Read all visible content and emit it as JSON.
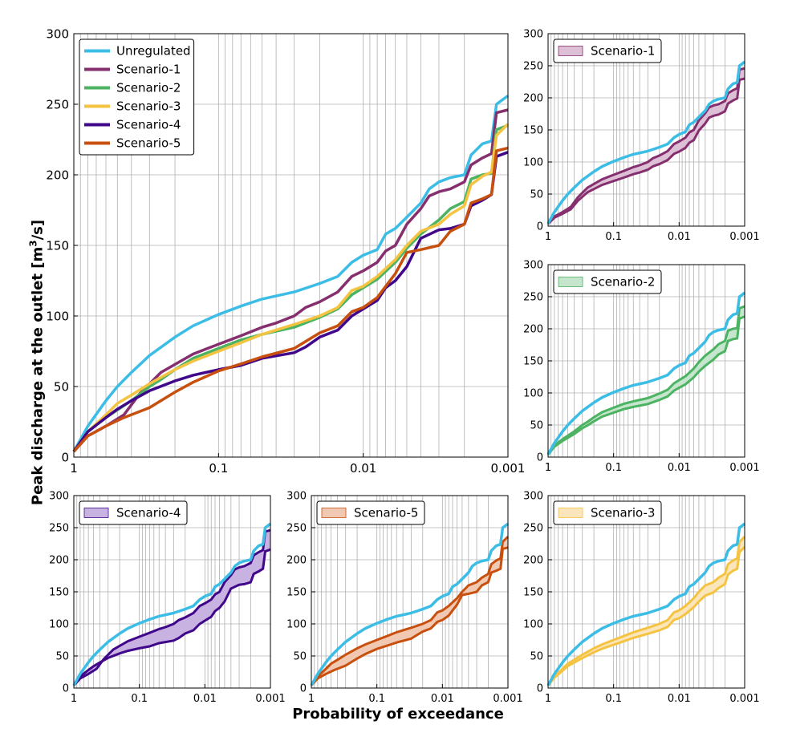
{
  "chart_data": {
    "type": "line",
    "xlabel": "Probability of exceedance",
    "ylabel_prefix": "Peak discharge at the outlet [m",
    "ylabel_sup": "3",
    "ylabel_suffix": "/s]",
    "xscale": "log-reversed",
    "xlim": [
      1,
      0.001
    ],
    "ylim": [
      0,
      300
    ],
    "grid": true,
    "xticks": [
      "1",
      "0.1",
      "0.01",
      "0.001"
    ],
    "yticks": [
      "0",
      "50",
      "100",
      "150",
      "200",
      "250",
      "300"
    ],
    "series": [
      {
        "name": "Unregulated",
        "color": "#3cbde6",
        "points": [
          [
            1,
            4
          ],
          [
            0.8,
            22
          ],
          [
            0.6,
            40
          ],
          [
            0.5,
            50
          ],
          [
            0.4,
            60
          ],
          [
            0.3,
            72
          ],
          [
            0.2,
            85
          ],
          [
            0.15,
            93
          ],
          [
            0.1,
            101
          ],
          [
            0.07,
            107
          ],
          [
            0.05,
            112
          ],
          [
            0.03,
            117
          ],
          [
            0.02,
            123
          ],
          [
            0.015,
            128
          ],
          [
            0.012,
            138
          ],
          [
            0.01,
            143
          ],
          [
            0.008,
            147
          ],
          [
            0.007,
            158
          ],
          [
            0.006,
            162
          ],
          [
            0.005,
            170
          ],
          [
            0.004,
            180
          ],
          [
            0.0035,
            190
          ],
          [
            0.003,
            195
          ],
          [
            0.0025,
            198
          ],
          [
            0.002,
            200
          ],
          [
            0.0018,
            214
          ],
          [
            0.0015,
            222
          ],
          [
            0.0013,
            224
          ],
          [
            0.0012,
            250
          ],
          [
            0.001,
            256
          ]
        ]
      },
      {
        "name": "Scenario-1",
        "color": "#862f6f",
        "points": [
          [
            1,
            4
          ],
          [
            0.8,
            15
          ],
          [
            0.6,
            22
          ],
          [
            0.45,
            30
          ],
          [
            0.35,
            45
          ],
          [
            0.25,
            60
          ],
          [
            0.15,
            73
          ],
          [
            0.1,
            80
          ],
          [
            0.07,
            86
          ],
          [
            0.05,
            92
          ],
          [
            0.04,
            95
          ],
          [
            0.03,
            100
          ],
          [
            0.025,
            106
          ],
          [
            0.02,
            110
          ],
          [
            0.015,
            117
          ],
          [
            0.012,
            128
          ],
          [
            0.01,
            132
          ],
          [
            0.008,
            138
          ],
          [
            0.007,
            146
          ],
          [
            0.006,
            150
          ],
          [
            0.005,
            165
          ],
          [
            0.004,
            176
          ],
          [
            0.0035,
            185
          ],
          [
            0.003,
            188
          ],
          [
            0.0025,
            190
          ],
          [
            0.002,
            195
          ],
          [
            0.0018,
            207
          ],
          [
            0.0015,
            212
          ],
          [
            0.0013,
            215
          ],
          [
            0.0012,
            244
          ],
          [
            0.001,
            246
          ]
        ]
      },
      {
        "name": "Scenario-2",
        "color": "#4cb362",
        "points": [
          [
            1,
            4
          ],
          [
            0.8,
            18
          ],
          [
            0.6,
            28
          ],
          [
            0.4,
            40
          ],
          [
            0.3,
            50
          ],
          [
            0.25,
            55
          ],
          [
            0.2,
            62
          ],
          [
            0.15,
            70
          ],
          [
            0.1,
            77
          ],
          [
            0.07,
            83
          ],
          [
            0.05,
            87
          ],
          [
            0.03,
            92
          ],
          [
            0.02,
            99
          ],
          [
            0.015,
            105
          ],
          [
            0.012,
            115
          ],
          [
            0.01,
            120
          ],
          [
            0.008,
            126
          ],
          [
            0.006,
            138
          ],
          [
            0.005,
            148
          ],
          [
            0.004,
            158
          ],
          [
            0.003,
            168
          ],
          [
            0.0025,
            176
          ],
          [
            0.002,
            181
          ],
          [
            0.0018,
            197
          ],
          [
            0.0015,
            200
          ],
          [
            0.0013,
            201
          ],
          [
            0.0012,
            232
          ],
          [
            0.001,
            235
          ]
        ]
      },
      {
        "name": "Scenario-3",
        "color": "#f5c342",
        "points": [
          [
            1,
            4
          ],
          [
            0.8,
            18
          ],
          [
            0.6,
            30
          ],
          [
            0.5,
            38
          ],
          [
            0.4,
            44
          ],
          [
            0.3,
            52
          ],
          [
            0.2,
            62
          ],
          [
            0.15,
            68
          ],
          [
            0.1,
            75
          ],
          [
            0.07,
            81
          ],
          [
            0.05,
            87
          ],
          [
            0.03,
            94
          ],
          [
            0.02,
            100
          ],
          [
            0.015,
            106
          ],
          [
            0.012,
            118
          ],
          [
            0.01,
            121
          ],
          [
            0.008,
            128
          ],
          [
            0.006,
            140
          ],
          [
            0.005,
            150
          ],
          [
            0.004,
            160
          ],
          [
            0.003,
            165
          ],
          [
            0.0025,
            172
          ],
          [
            0.002,
            178
          ],
          [
            0.0018,
            193
          ],
          [
            0.0015,
            199
          ],
          [
            0.0013,
            202
          ],
          [
            0.0012,
            228
          ],
          [
            0.001,
            236
          ]
        ]
      },
      {
        "name": "Scenario-4",
        "color": "#40078b",
        "points": [
          [
            1,
            4
          ],
          [
            0.8,
            18
          ],
          [
            0.6,
            28
          ],
          [
            0.5,
            34
          ],
          [
            0.4,
            40
          ],
          [
            0.3,
            47
          ],
          [
            0.2,
            54
          ],
          [
            0.15,
            58
          ],
          [
            0.1,
            62
          ],
          [
            0.07,
            65
          ],
          [
            0.05,
            70
          ],
          [
            0.03,
            74
          ],
          [
            0.025,
            78
          ],
          [
            0.02,
            85
          ],
          [
            0.015,
            90
          ],
          [
            0.012,
            100
          ],
          [
            0.01,
            105
          ],
          [
            0.008,
            111
          ],
          [
            0.007,
            120
          ],
          [
            0.006,
            125
          ],
          [
            0.005,
            135
          ],
          [
            0.004,
            155
          ],
          [
            0.003,
            161
          ],
          [
            0.0025,
            162
          ],
          [
            0.002,
            165
          ],
          [
            0.0018,
            178
          ],
          [
            0.0015,
            182
          ],
          [
            0.0013,
            186
          ],
          [
            0.0012,
            213
          ],
          [
            0.001,
            216
          ]
        ]
      },
      {
        "name": "Scenario-5",
        "color": "#c8500f",
        "points": [
          [
            1,
            4
          ],
          [
            0.8,
            15
          ],
          [
            0.6,
            22
          ],
          [
            0.45,
            28
          ],
          [
            0.3,
            35
          ],
          [
            0.25,
            40
          ],
          [
            0.2,
            46
          ],
          [
            0.15,
            53
          ],
          [
            0.1,
            61
          ],
          [
            0.07,
            66
          ],
          [
            0.05,
            71
          ],
          [
            0.03,
            77
          ],
          [
            0.025,
            82
          ],
          [
            0.02,
            88
          ],
          [
            0.015,
            93
          ],
          [
            0.012,
            103
          ],
          [
            0.01,
            106
          ],
          [
            0.008,
            113
          ],
          [
            0.007,
            121
          ],
          [
            0.006,
            130
          ],
          [
            0.005,
            145
          ],
          [
            0.004,
            147
          ],
          [
            0.003,
            150
          ],
          [
            0.0025,
            160
          ],
          [
            0.002,
            165
          ],
          [
            0.0018,
            180
          ],
          [
            0.0015,
            183
          ],
          [
            0.0013,
            186
          ],
          [
            0.0012,
            217
          ],
          [
            0.001,
            219
          ]
        ]
      }
    ],
    "panels": [
      {
        "id": "main",
        "legend": [
          "Unregulated",
          "Scenario-1",
          "Scenario-2",
          "Scenario-3",
          "Scenario-4",
          "Scenario-5"
        ],
        "lines": [
          "Unregulated",
          "Scenario-1",
          "Scenario-2",
          "Scenario-3",
          "Scenario-4",
          "Scenario-5"
        ],
        "band": null,
        "legend_placement": "top-left",
        "tick_font": 15
      },
      {
        "id": "p1",
        "legend": [
          "Scenario-1"
        ],
        "lines": [
          "Unregulated",
          "Scenario-1"
        ],
        "band": {
          "color": "#862f6f",
          "fill": "#ddc0d6",
          "lower_scale": 0.88,
          "upper": "Scenario-1"
        },
        "legend_placement": "top-left",
        "tick_font": 13
      },
      {
        "id": "p2",
        "legend": [
          "Scenario-2"
        ],
        "lines": [
          "Unregulated",
          "Scenario-2"
        ],
        "band": {
          "color": "#4cb362",
          "fill": "#c5e5cc",
          "lower_scale": 0.9,
          "upper": "Scenario-2"
        },
        "legend_placement": "top-left",
        "tick_font": 13
      },
      {
        "id": "p4",
        "legend": [
          "Scenario-4"
        ],
        "lines": [
          "Unregulated",
          "Scenario-4"
        ],
        "band": {
          "color": "#40078b",
          "fill": "#c7b2e2",
          "upper_from": "Scenario-1",
          "lower": "Scenario-4"
        },
        "legend_placement": "top-left",
        "tick_font": 13
      },
      {
        "id": "p5",
        "legend": [
          "Scenario-5"
        ],
        "lines": [
          "Unregulated",
          "Scenario-5"
        ],
        "band": {
          "color": "#c8500f",
          "fill": "#f1c8b2",
          "upper_from": "Scenario-3",
          "lower": "Scenario-5"
        },
        "legend_placement": "top-left",
        "tick_font": 13
      },
      {
        "id": "p3",
        "legend": [
          "Scenario-3"
        ],
        "lines": [
          "Unregulated",
          "Scenario-3"
        ],
        "band": {
          "color": "#f5c342",
          "fill": "#fbe6bc",
          "lower_scale": 0.9,
          "upper": "Scenario-3"
        },
        "legend_placement": "top-left",
        "tick_font": 13
      }
    ]
  }
}
